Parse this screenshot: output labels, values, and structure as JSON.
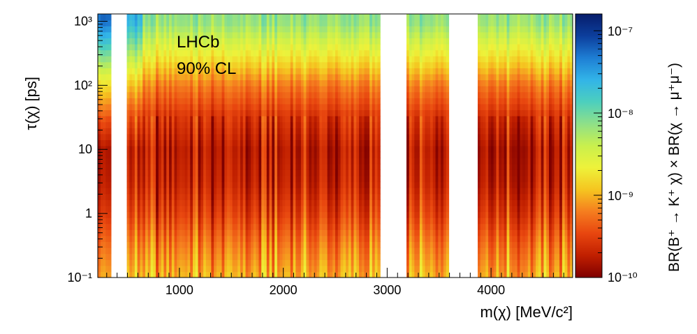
{
  "chart_data": {
    "type": "heatmap",
    "title": "",
    "annotations": [
      "LHCb",
      "90% CL"
    ],
    "xlabel": "m(χ) [MeV/c²]",
    "ylabel": "τ(χ) [ps]",
    "zlabel": "BR(B⁺ → K⁺ χ) × BR(χ → μ⁺μ⁻)",
    "x_range": [
      214,
      4786
    ],
    "y_range": [
      0.1,
      1300
    ],
    "y_scale": "log",
    "z_range": [
      1e-10,
      1.6e-07
    ],
    "z_scale": "log",
    "x_ticks": [
      "1000",
      "2000",
      "3000",
      "4000"
    ],
    "y_ticks": [
      "10⁻¹",
      "1",
      "10",
      "10²",
      "10³"
    ],
    "z_ticks": [
      "10⁻¹⁰",
      "10⁻⁹",
      "10⁻⁸",
      "10⁻⁷"
    ],
    "colormap": [
      "#7f0000",
      "#c01f00",
      "#e8460f",
      "#f57d1f",
      "#f5c520",
      "#eef23a",
      "#c9f04d",
      "#8fe088",
      "#4ccfbe",
      "#32b4e8",
      "#1e7ed4",
      "#0c3e9c",
      "#071d6b"
    ],
    "excluded_mass_regions": [
      [
        340,
        380
      ],
      [
        400,
        490
      ],
      [
        2930,
        3180
      ],
      [
        3590,
        3880
      ]
    ],
    "limit_profile": {
      "tau_ps": [
        0.1,
        0.3,
        1,
        3,
        10,
        30,
        100,
        300,
        1000
      ],
      "typical_limit": [
        1e-09,
        6e-10,
        3e-10,
        2e-10,
        1.7e-10,
        2.5e-10,
        6e-10,
        2e-09,
        7e-09
      ]
    },
    "grid": false
  }
}
